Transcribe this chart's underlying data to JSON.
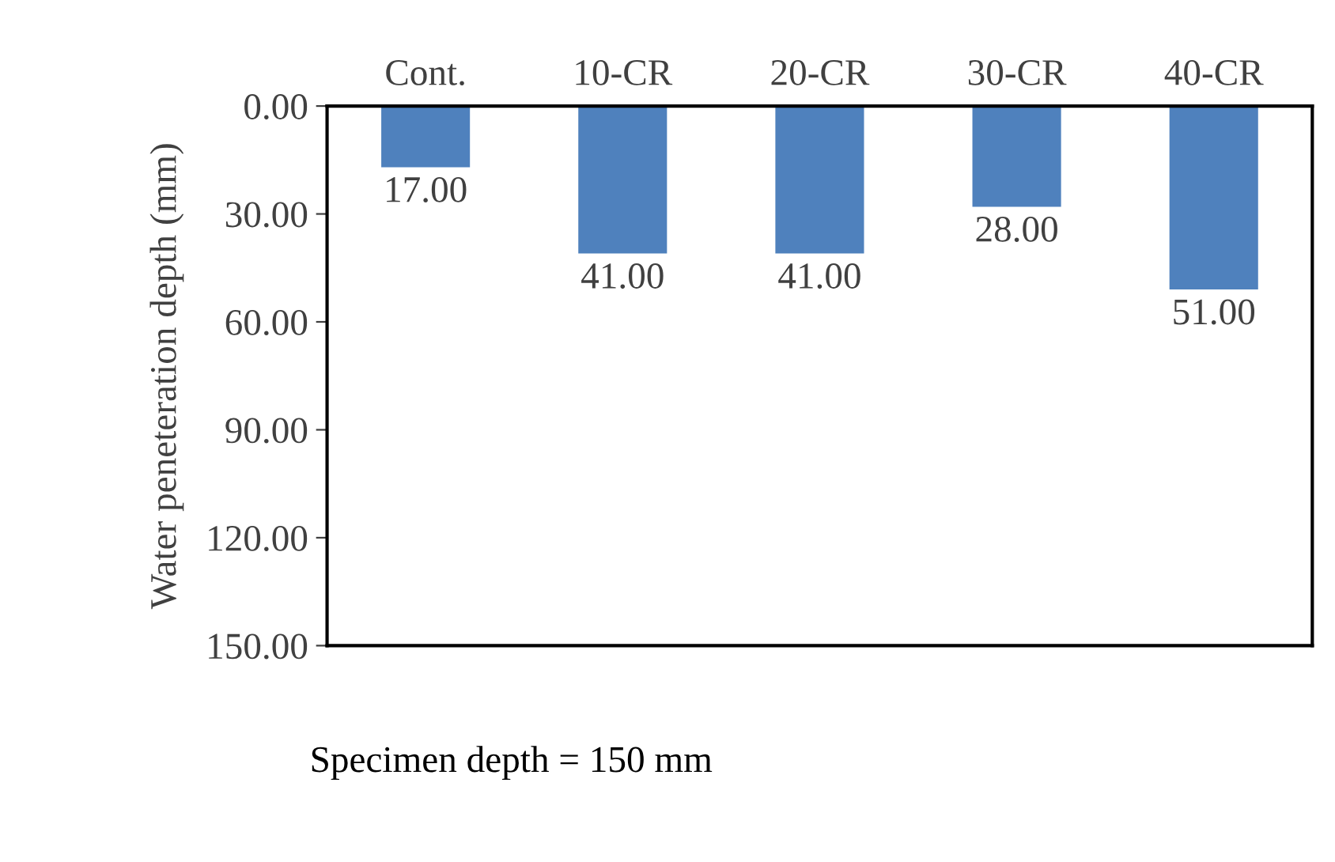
{
  "chart_data": {
    "type": "bar",
    "ylabel": "Water peneteration depth (mm)",
    "categories": [
      "Cont.",
      "10-CR",
      "20-CR",
      "30-CR",
      "40-CR"
    ],
    "values": [
      17,
      41,
      41,
      28,
      51
    ],
    "value_labels": [
      "17.00",
      "41.00",
      "41.00",
      "28.00",
      "51.00"
    ],
    "color": "#4f81bd",
    "ylim": [
      150,
      0
    ],
    "yticks": [
      {
        "value": 0,
        "label": "0.00"
      },
      {
        "value": 30,
        "label": "30.00"
      },
      {
        "value": 60,
        "label": "60.00"
      },
      {
        "value": 90,
        "label": "90.00"
      },
      {
        "value": 120,
        "label": "120.00"
      },
      {
        "value": 150,
        "label": "150.00"
      }
    ],
    "grid": false,
    "legend": false,
    "annotations": [
      "Specimen depth = 150 mm"
    ]
  }
}
